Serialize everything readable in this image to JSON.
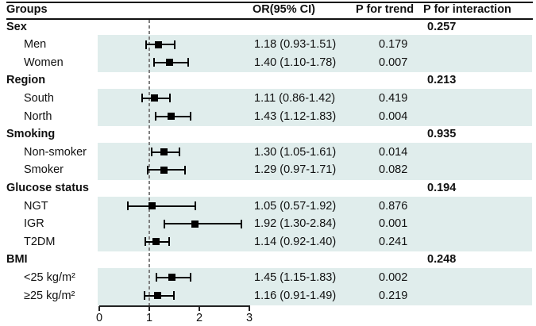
{
  "chart_data": {
    "type": "forest",
    "columns": [
      "Groups",
      "OR(95% CI)",
      "P for trend",
      "P for interaction"
    ],
    "x_axis": {
      "min": 0,
      "max": 3,
      "ticks": [
        0,
        1,
        2,
        3
      ],
      "reference_line": 1
    },
    "groups": [
      {
        "label": "Sex",
        "p_interaction": "0.257",
        "rows": [
          {
            "label": "Men",
            "or": 1.18,
            "lo": 0.93,
            "hi": 1.51,
            "or_ci": "1.18 (0.93-1.51)",
            "p_trend": "0.179"
          },
          {
            "label": "Women",
            "or": 1.4,
            "lo": 1.1,
            "hi": 1.78,
            "or_ci": "1.40 (1.10-1.78)",
            "p_trend": "0.007"
          }
        ]
      },
      {
        "label": "Region",
        "p_interaction": "0.213",
        "rows": [
          {
            "label": "South",
            "or": 1.11,
            "lo": 0.86,
            "hi": 1.42,
            "or_ci": "1.11 (0.86-1.42)",
            "p_trend": "0.419"
          },
          {
            "label": "North",
            "or": 1.43,
            "lo": 1.12,
            "hi": 1.83,
            "or_ci": "1.43 (1.12-1.83)",
            "p_trend": "0.004"
          }
        ]
      },
      {
        "label": "Smoking",
        "p_interaction": "0.935",
        "rows": [
          {
            "label": "Non-smoker",
            "or": 1.3,
            "lo": 1.05,
            "hi": 1.61,
            "or_ci": "1.30 (1.05-1.61)",
            "p_trend": "0.014"
          },
          {
            "label": "Smoker",
            "or": 1.29,
            "lo": 0.97,
            "hi": 1.71,
            "or_ci": "1.29 (0.97-1.71)",
            "p_trend": "0.082"
          }
        ]
      },
      {
        "label": "Glucose status",
        "p_interaction": "0.194",
        "rows": [
          {
            "label": "NGT",
            "or": 1.05,
            "lo": 0.57,
            "hi": 1.92,
            "or_ci": "1.05 (0.57-1.92)",
            "p_trend": "0.876"
          },
          {
            "label": "IGR",
            "or": 1.92,
            "lo": 1.3,
            "hi": 2.84,
            "or_ci": "1.92 (1.30-2.84)",
            "p_trend": "0.001"
          },
          {
            "label": "T2DM",
            "or": 1.14,
            "lo": 0.92,
            "hi": 1.4,
            "or_ci": "1.14 (0.92-1.40)",
            "p_trend": "0.241"
          }
        ]
      },
      {
        "label": "BMI",
        "p_interaction": "0.248",
        "rows": [
          {
            "label": "<25 kg/m²",
            "or": 1.45,
            "lo": 1.15,
            "hi": 1.83,
            "or_ci": "1.45 (1.15-1.83)",
            "p_trend": "0.002"
          },
          {
            "label": "≥25 kg/m²",
            "or": 1.16,
            "lo": 0.91,
            "hi": 1.49,
            "or_ci": "1.16 (0.91-1.49)",
            "p_trend": "0.219"
          }
        ]
      }
    ]
  },
  "colors": {
    "band": "#e0edec",
    "reference_line": "#7f7f7f",
    "marker": "#000000",
    "text": "#111111"
  }
}
